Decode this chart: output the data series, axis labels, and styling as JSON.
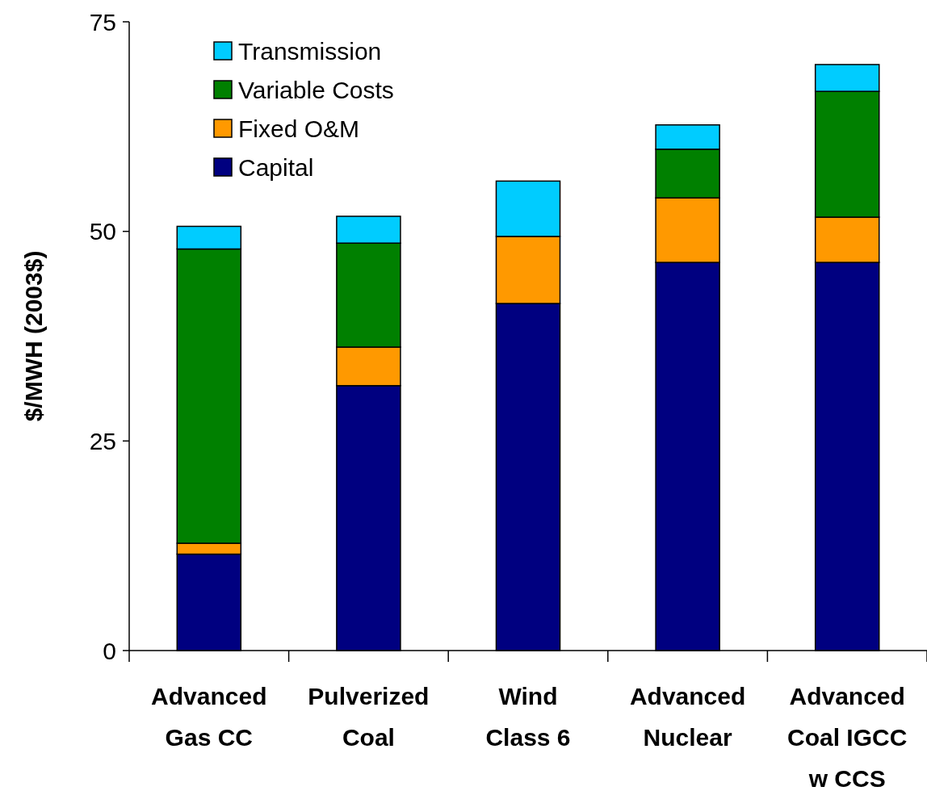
{
  "chart_data": {
    "type": "bar",
    "stacked": true,
    "ylabel": "$/MWH (2003$)",
    "categories": [
      "Advanced\nGas CC",
      "Pulverized\nCoal",
      "Wind\nClass 6",
      "Advanced\nNuclear",
      "Advanced\nCoal IGCC\nw CCS"
    ],
    "series": [
      {
        "name": "Capital",
        "color": "#000080",
        "values": [
          11.5,
          31.6,
          41.4,
          46.3,
          46.3
        ]
      },
      {
        "name": "Fixed O&M",
        "color": "#ff9900",
        "values": [
          1.3,
          4.6,
          8.0,
          7.7,
          5.4
        ]
      },
      {
        "name": "Variable Costs",
        "color": "#008000",
        "values": [
          35.1,
          12.4,
          null,
          5.8,
          15.0
        ]
      },
      {
        "name": "Transmission",
        "color": "#00ccff",
        "values": [
          2.7,
          3.2,
          6.6,
          2.9,
          3.2
        ]
      }
    ],
    "ylim": [
      0,
      75
    ],
    "yticks": [
      0,
      25,
      50,
      75
    ],
    "grid": false,
    "legend": "top left"
  }
}
